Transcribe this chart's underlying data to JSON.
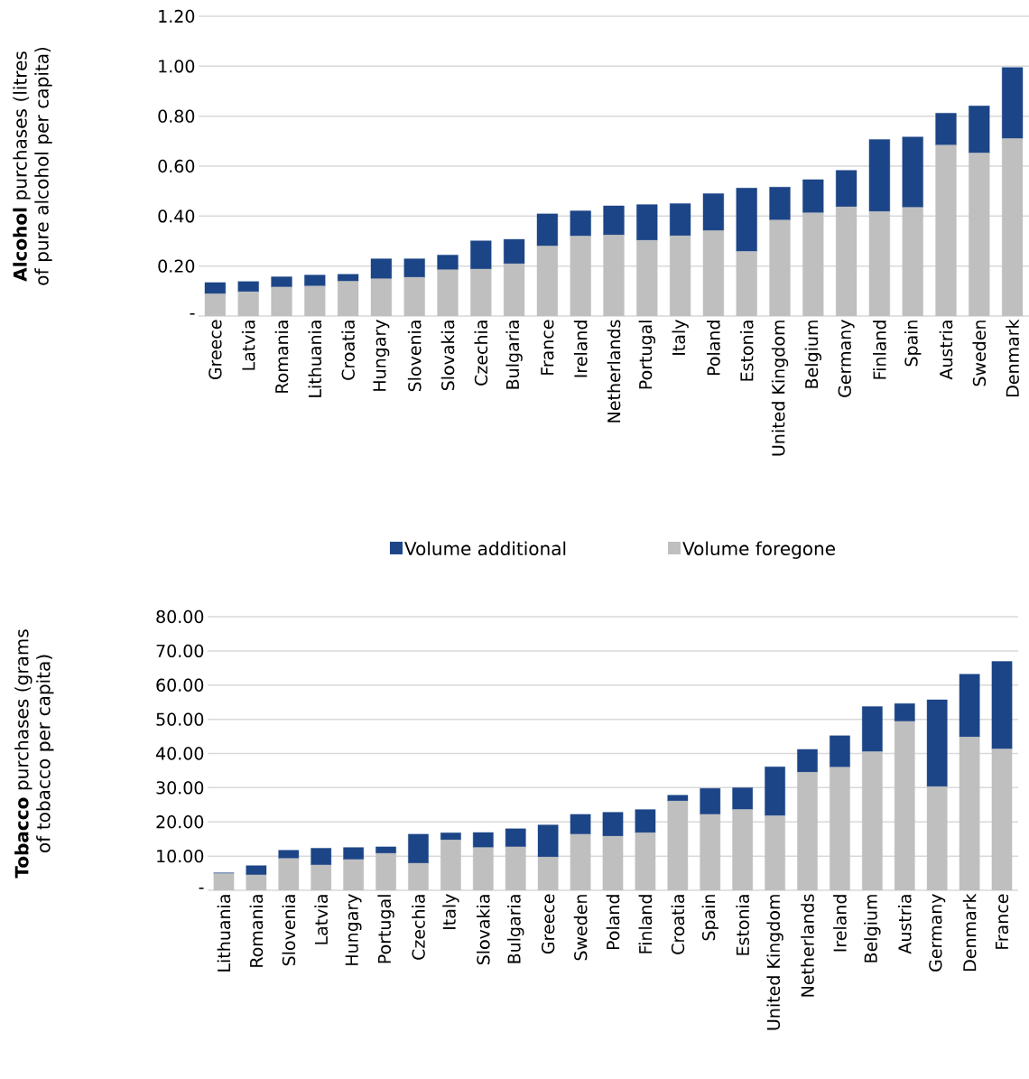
{
  "chart_data": [
    {
      "type": "bar",
      "stacked": true,
      "ylabel": "**Alcohol** purchases (litres of pure alcohol per capita)",
      "categories": [
        "Greece",
        "Latvia",
        "Romania",
        "Lithuania",
        "Croatia",
        "Hungary",
        "Slovenia",
        "Slovakia",
        "Czechia",
        "Bulgaria",
        "France",
        "Ireland",
        "Netherlands",
        "Portugal",
        "Italy",
        "Poland",
        "Estonia",
        "United Kingdom",
        "Belgium",
        "Germany",
        "Finland",
        "Spain",
        "Austria",
        "Sweden",
        "Denmark"
      ],
      "series": [
        {
          "name": "Volume foregone",
          "color": "#bfbfbf",
          "values": [
            0.089,
            0.097,
            0.116,
            0.12,
            0.139,
            0.149,
            0.155,
            0.185,
            0.188,
            0.209,
            0.28,
            0.32,
            0.324,
            0.303,
            0.321,
            0.342,
            0.258,
            0.384,
            0.413,
            0.437,
            0.418,
            0.435,
            0.684,
            0.652,
            0.71
          ]
        },
        {
          "name": "Volume additional",
          "color": "#1c4587",
          "values": [
            0.045,
            0.041,
            0.041,
            0.044,
            0.028,
            0.08,
            0.074,
            0.059,
            0.113,
            0.098,
            0.129,
            0.101,
            0.117,
            0.143,
            0.129,
            0.148,
            0.254,
            0.132,
            0.133,
            0.146,
            0.289,
            0.282,
            0.128,
            0.189,
            0.285
          ]
        }
      ],
      "ylim": [
        0,
        1.2
      ],
      "yticks": [
        {
          "value": 0,
          "label": "-"
        },
        {
          "value": 0.2,
          "label": "0.20"
        },
        {
          "value": 0.4,
          "label": "0.40"
        },
        {
          "value": 0.6,
          "label": "0.60"
        },
        {
          "value": 0.8,
          "label": "0.80"
        },
        {
          "value": 1.0,
          "label": "1.00"
        },
        {
          "value": 1.2,
          "label": "1.20"
        }
      ],
      "grid": "y",
      "legend": "bottom"
    },
    {
      "type": "bar",
      "stacked": true,
      "ylabel": "**Tobacco** purchases (grams of tobacco per capita)",
      "categories": [
        "Lithuania",
        "Romania",
        "Slovenia",
        "Latvia",
        "Hungary",
        "Portugal",
        "Czechia",
        "Italy",
        "Slovakia",
        "Bulgaria",
        "Greece",
        "Sweden",
        "Poland",
        "Finland",
        "Croatia",
        "Spain",
        "Estonia",
        "United Kingdom",
        "Netherlands",
        "Ireland",
        "Belgium",
        "Austria",
        "Germany",
        "Denmark",
        "France"
      ],
      "series": [
        {
          "color": "#bfbfbf",
          "values": [
            4.9,
            4.5,
            9.3,
            7.4,
            9.0,
            10.8,
            7.9,
            14.7,
            12.5,
            12.7,
            9.7,
            16.4,
            15.8,
            16.8,
            26.1,
            22.2,
            23.6,
            21.8,
            34.5,
            36.0,
            40.5,
            49.4,
            30.3,
            44.8,
            41.3
          ]
        },
        {
          "color": "#1c4587",
          "values": [
            0.2,
            2.7,
            2.4,
            4.9,
            3.5,
            1.9,
            8.5,
            2.1,
            4.4,
            5.3,
            9.4,
            5.8,
            7.0,
            6.8,
            1.7,
            7.6,
            6.4,
            14.3,
            6.7,
            9.2,
            13.2,
            5.2,
            25.4,
            18.4,
            25.6
          ]
        }
      ],
      "ylim": [
        0,
        80
      ],
      "yticks": [
        {
          "value": 0,
          "label": "-"
        },
        {
          "value": 10,
          "label": "10.00"
        },
        {
          "value": 20,
          "label": "20.00"
        },
        {
          "value": 30,
          "label": "30.00"
        },
        {
          "value": 40,
          "label": "40.00"
        },
        {
          "value": 50,
          "label": "50.00"
        },
        {
          "value": 60,
          "label": "60.00"
        },
        {
          "value": 70,
          "label": "70.00"
        },
        {
          "value": 80,
          "label": "80.00"
        }
      ],
      "grid": "y"
    }
  ]
}
